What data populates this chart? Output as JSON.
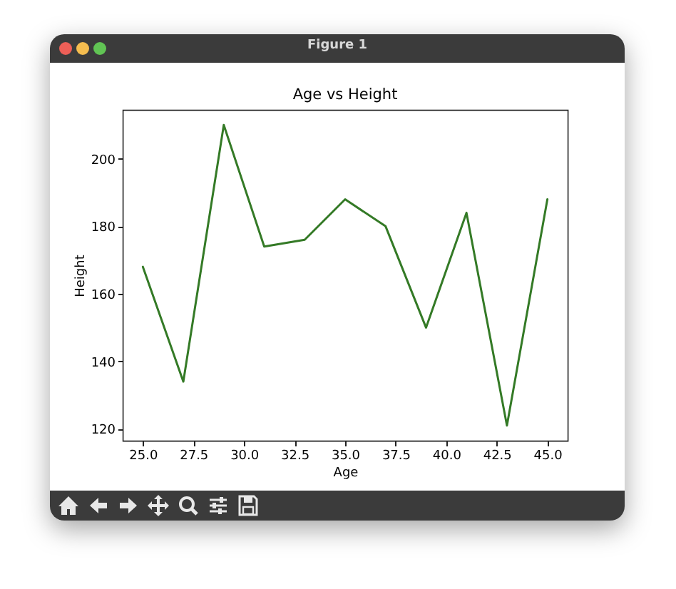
{
  "chart_data": {
    "type": "line",
    "title": "Age vs Height",
    "xlabel": "Age",
    "ylabel": "Height",
    "annotations": [
      "Figure 1"
    ],
    "x": [
      25,
      27,
      29,
      31,
      33,
      35,
      37,
      39,
      41,
      43,
      45
    ],
    "series": [
      {
        "color": "#347a26",
        "values": [
          168,
          134,
          210,
          174,
          176,
          188,
          180,
          150,
          184,
          121,
          188
        ]
      }
    ],
    "xlim": [
      24,
      46
    ],
    "ylim": [
      116.5,
      214.5
    ],
    "xticks": [
      {
        "value": 25,
        "label": "25.0"
      },
      {
        "value": 27.5,
        "label": "27.5"
      },
      {
        "value": 30,
        "label": "30.0"
      },
      {
        "value": 32.5,
        "label": "32.5"
      },
      {
        "value": 35,
        "label": "35.0"
      },
      {
        "value": 37.5,
        "label": "37.5"
      },
      {
        "value": 40,
        "label": "40.0"
      },
      {
        "value": 42.5,
        "label": "42.5"
      },
      {
        "value": 45,
        "label": "45.0"
      }
    ],
    "yticks": [
      120,
      140,
      160,
      180,
      200
    ],
    "grid": false,
    "legend": false,
    "marker": "none",
    "line_style": "solid"
  }
}
